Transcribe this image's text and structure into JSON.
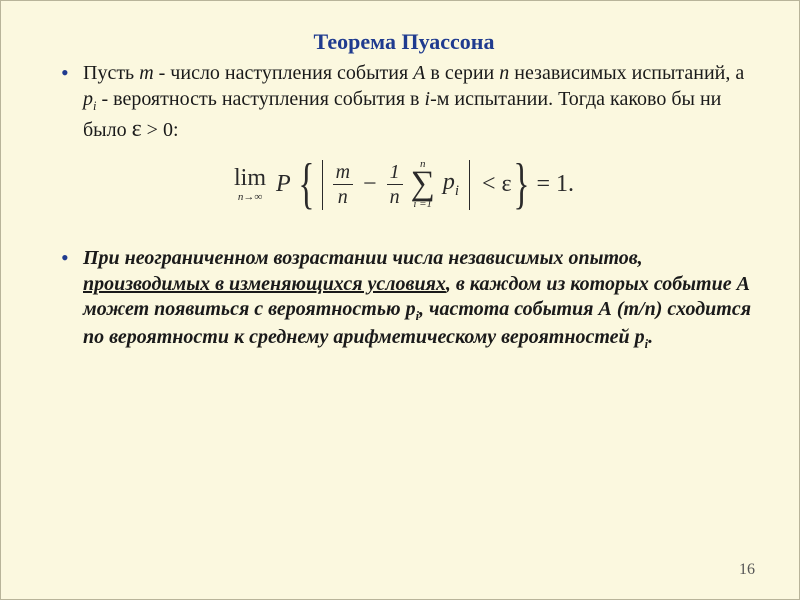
{
  "colors": {
    "background": "#fbf8df",
    "outer_background": "#ecece2",
    "title_color": "#1f3b8f",
    "bullet_color": "#1f3b8f",
    "text_color": "#1a1a1a",
    "slide_border": "#b8b49a"
  },
  "typography": {
    "family": "Times New Roman",
    "title_size_pt": 17,
    "body_size_pt": 15,
    "formula_size_pt": 18
  },
  "title": "Теорема Пуассона",
  "bullet1": {
    "t1": "Пусть ",
    "m": "m",
    "t2": " - число наступления события ",
    "A": "A",
    "t3": " в серии ",
    "n": "n",
    "t4": " независимых испытаний, а ",
    "p": "p",
    "pi_sub": "i",
    "t5": " - вероятность наступления события в ",
    "i": "i",
    "t6": "-м испытании. Тогда каково бы ни было ",
    "eps": "ε",
    "t7": " > 0:"
  },
  "formula": {
    "lim": "lim",
    "lim_sub": "n→∞",
    "P": "P",
    "frac1_num": "m",
    "frac1_den": "n",
    "minus": "−",
    "frac2_num": "1",
    "frac2_den": "n",
    "sum_top": "n",
    "sum_bot": "i =1",
    "sigma": "∑",
    "p": "p",
    "p_sub": "i",
    "lt": "<",
    "eps": "ε",
    "eq": "= 1.",
    "lbrace": "{",
    "rbrace": "}"
  },
  "bullet2": {
    "t1": "При неограниченном возрастании числа независимых опытов, ",
    "u1": "производимых в изменяющихся условиях",
    "t2": ", в каждом из которых событие А может появиться с вероятностью p",
    "sub1": "i",
    "t3": ", частота события А (m/n) сходится по вероятности к среднему арифметическому вероятностей p",
    "sub2": "i",
    "t4": "."
  },
  "page_number": "16"
}
